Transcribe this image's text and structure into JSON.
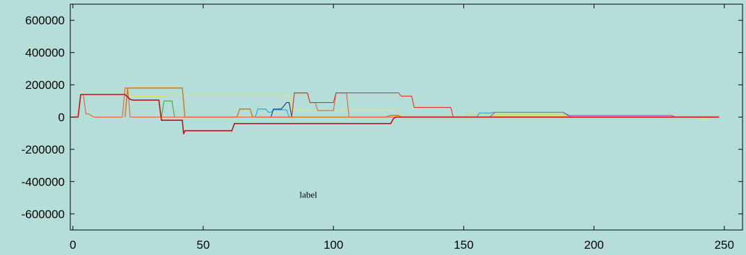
{
  "chart_data": {
    "type": "line",
    "title": "",
    "xlabel": "",
    "ylabel": "",
    "xlim": [
      -1,
      257
    ],
    "ylim": [
      -700000,
      700000
    ],
    "x_ticks": [
      0,
      50,
      100,
      150,
      200,
      250
    ],
    "y_ticks": [
      600000,
      400000,
      200000,
      0,
      -200000,
      -400000,
      -600000
    ],
    "x_tick_labels": [
      "0",
      "50",
      "100",
      "150",
      "200",
      "250"
    ],
    "y_tick_labels": [
      "600000",
      "400000",
      "200000",
      "0",
      "-200000",
      "-400000",
      "-600000"
    ],
    "annotation": {
      "text": "label",
      "x": 87,
      "y": -500000
    },
    "grid": false,
    "legend": "none",
    "series": [
      {
        "color": "#e8e05a",
        "points": [
          [
            0,
            0
          ],
          [
            2,
            0
          ],
          [
            3,
            140000
          ],
          [
            20,
            140000
          ],
          [
            21,
            180000
          ],
          [
            22,
            130000
          ],
          [
            35,
            130000
          ],
          [
            36,
            135000
          ],
          [
            83,
            135000
          ],
          [
            84,
            40000
          ],
          [
            125,
            40000
          ],
          [
            126,
            0
          ],
          [
            160,
            0
          ],
          [
            161,
            10000
          ],
          [
            230,
            10000
          ],
          [
            231,
            0
          ],
          [
            240,
            0
          ],
          [
            242,
            -15000
          ],
          [
            245,
            0
          ],
          [
            248,
            0
          ]
        ]
      },
      {
        "color": "#c8e63c",
        "points": [
          [
            125,
            0
          ],
          [
            150,
            0
          ],
          [
            152,
            15000
          ],
          [
            165,
            15000
          ],
          [
            190,
            15000
          ],
          [
            192,
            0
          ],
          [
            248,
            0
          ]
        ]
      },
      {
        "color": "#2aa0d8",
        "points": [
          [
            60,
            0
          ],
          [
            70,
            0
          ],
          [
            71,
            50000
          ],
          [
            74,
            50000
          ],
          [
            75,
            30000
          ],
          [
            76,
            30000
          ],
          [
            77,
            45000
          ],
          [
            82,
            45000
          ],
          [
            83,
            0
          ],
          [
            155,
            0
          ],
          [
            156,
            25000
          ],
          [
            160,
            25000
          ],
          [
            162,
            30000
          ],
          [
            188,
            30000
          ],
          [
            190,
            15000
          ],
          [
            191,
            0
          ],
          [
            248,
            0
          ]
        ]
      },
      {
        "color": "#1a3a8a",
        "points": [
          [
            76,
            0
          ],
          [
            77,
            50000
          ],
          [
            80,
            50000
          ],
          [
            82,
            90000
          ],
          [
            83,
            90000
          ],
          [
            84,
            0
          ],
          [
            125,
            0
          ]
        ]
      },
      {
        "color": "#c040c0",
        "points": [
          [
            160,
            0
          ],
          [
            162,
            30000
          ],
          [
            188,
            30000
          ],
          [
            190,
            10000
          ],
          [
            230,
            10000
          ],
          [
            231,
            0
          ],
          [
            248,
            0
          ]
        ]
      },
      {
        "color": "#3aaa3a",
        "points": [
          [
            32,
            0
          ],
          [
            34,
            0
          ],
          [
            35,
            100000
          ],
          [
            38,
            100000
          ],
          [
            39,
            0
          ],
          [
            125,
            0
          ]
        ]
      },
      {
        "color": "#c0862a",
        "points": [
          [
            20,
            0
          ],
          [
            21,
            180000
          ],
          [
            42,
            180000
          ],
          [
            43,
            0
          ],
          [
            63,
            0
          ],
          [
            64,
            50000
          ],
          [
            68,
            50000
          ],
          [
            69,
            0
          ],
          [
            120,
            0
          ],
          [
            122,
            10000
          ],
          [
            125,
            10000
          ],
          [
            126,
            0
          ],
          [
            248,
            0
          ]
        ]
      },
      {
        "color": "#e06040",
        "points": [
          [
            0,
            0
          ],
          [
            2,
            0
          ],
          [
            3,
            140000
          ],
          [
            4,
            140000
          ],
          [
            5,
            20000
          ],
          [
            6,
            20000
          ],
          [
            8,
            0
          ],
          [
            19,
            0
          ],
          [
            20,
            180000
          ],
          [
            21,
            180000
          ],
          [
            22,
            0
          ],
          [
            84,
            0
          ],
          [
            85,
            150000
          ],
          [
            90,
            150000
          ],
          [
            91,
            90000
          ],
          [
            93,
            90000
          ],
          [
            94,
            40000
          ],
          [
            99,
            40000
          ],
          [
            100,
            40000
          ],
          [
            101,
            150000
          ],
          [
            105,
            150000
          ],
          [
            106,
            0
          ],
          [
            248,
            0
          ]
        ]
      },
      {
        "color": "#e03030",
        "points": [
          [
            84,
            0
          ],
          [
            85,
            150000
          ],
          [
            90,
            150000
          ],
          [
            91,
            90000
          ],
          [
            100,
            90000
          ],
          [
            101,
            150000
          ],
          [
            125,
            150000
          ],
          [
            126,
            130000
          ],
          [
            130,
            130000
          ],
          [
            131,
            60000
          ],
          [
            145,
            60000
          ],
          [
            146,
            0
          ],
          [
            248,
            0
          ]
        ]
      },
      {
        "color": "#c01010",
        "points": [
          [
            0,
            0
          ],
          [
            2,
            0
          ],
          [
            3,
            140000
          ],
          [
            20,
            140000
          ],
          [
            22,
            110000
          ],
          [
            23,
            105000
          ],
          [
            33,
            105000
          ],
          [
            34,
            -20000
          ],
          [
            42,
            -20000
          ],
          [
            42.5,
            -105000
          ],
          [
            43,
            -85000
          ],
          [
            61,
            -85000
          ],
          [
            62,
            -40000
          ],
          [
            122,
            -40000
          ],
          [
            123,
            -10000
          ],
          [
            124,
            0
          ],
          [
            248,
            0
          ]
        ]
      }
    ]
  }
}
